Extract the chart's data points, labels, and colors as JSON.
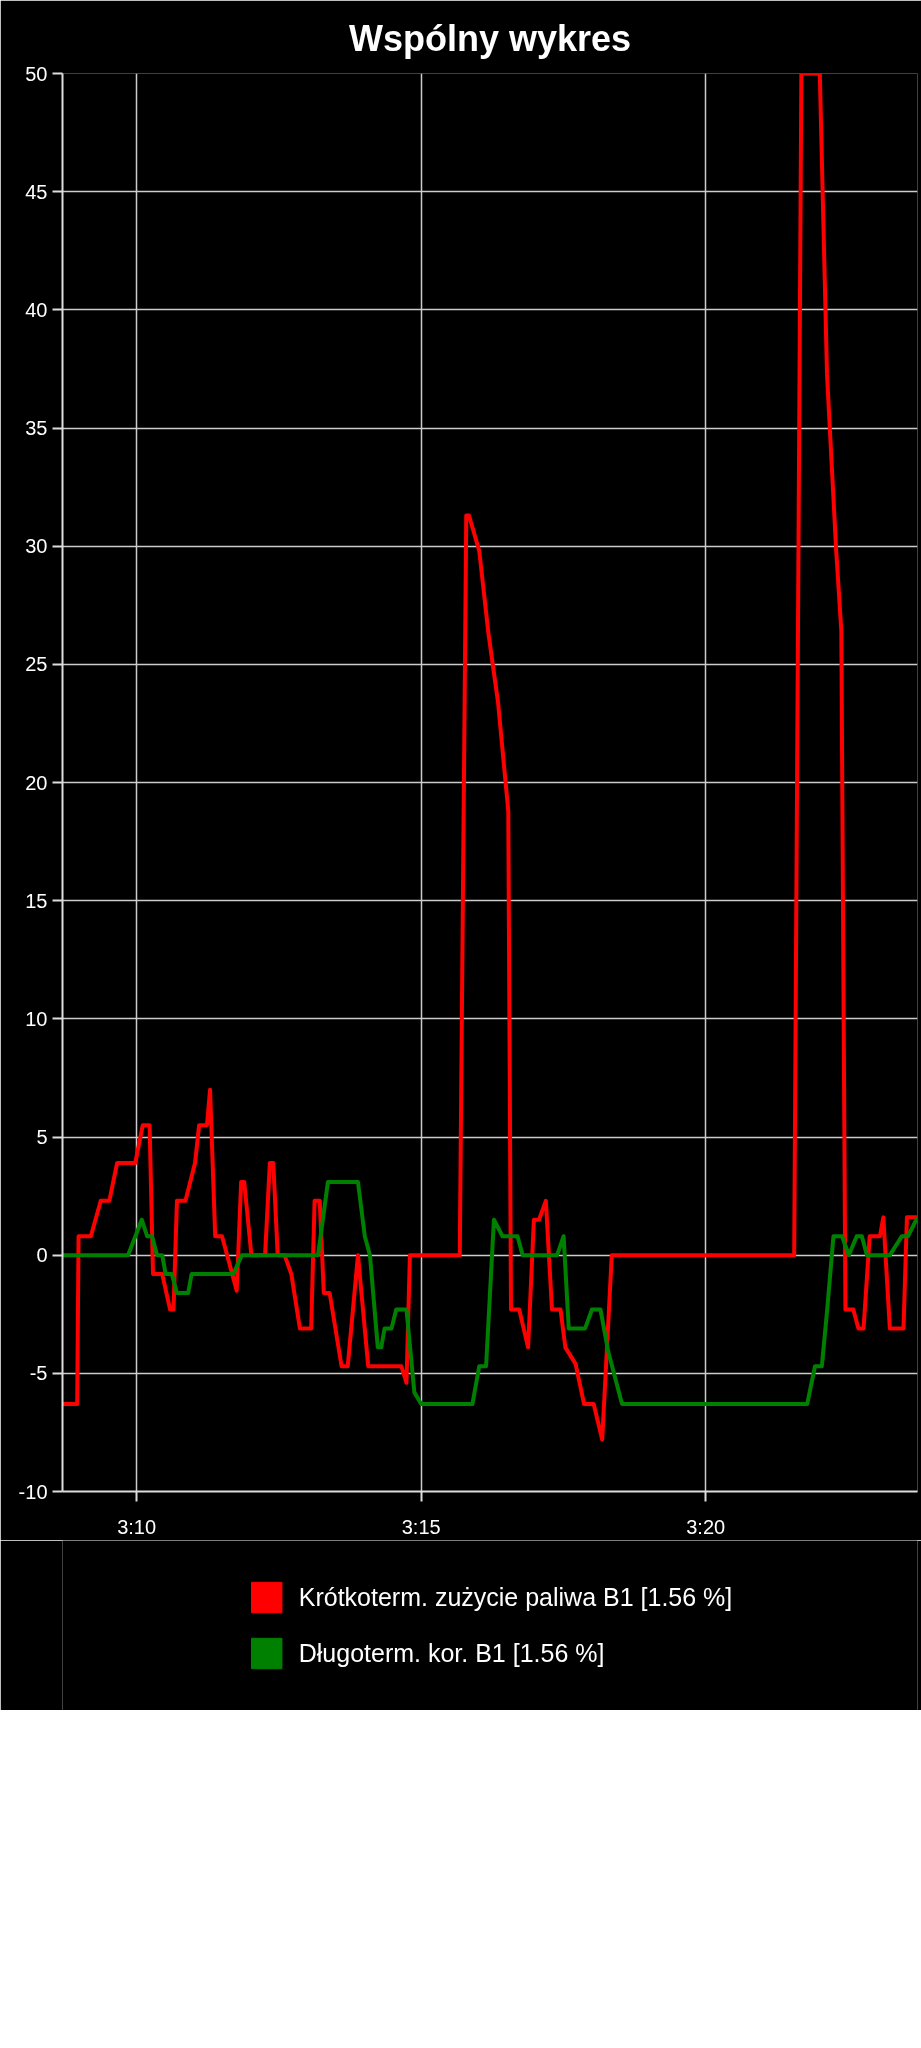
{
  "chart_data": {
    "type": "line",
    "title": "Wspólny wykres",
    "xlim": [
      3.145,
      3.3953
    ],
    "ylim": [
      -10,
      50
    ],
    "xticks": [
      {
        "value": 3.1667,
        "label": "3:10"
      },
      {
        "value": 3.25,
        "label": "3:15"
      },
      {
        "value": 3.3333,
        "label": "3:20"
      }
    ],
    "yticks": [
      -10,
      -5,
      0,
      5,
      10,
      15,
      20,
      25,
      30,
      35,
      40,
      45,
      50
    ],
    "grid": true,
    "legend": "bottom",
    "line_style": "solid",
    "series": [
      {
        "name": "Krótkoterm. zużycie paliwa B1 [1.56 %]",
        "color": "#ff0000",
        "x": [
          3.145,
          3.1493,
          3.1497,
          3.1533,
          3.1562,
          3.1587,
          3.161,
          3.1663,
          3.1685,
          3.1705,
          3.1715,
          3.1742,
          3.1765,
          3.1775,
          3.1785,
          3.181,
          3.1838,
          3.185,
          3.1873,
          3.1882,
          3.1897,
          3.1917,
          3.196,
          3.1973,
          3.1982,
          3.2003,
          3.2043,
          3.2057,
          3.2067,
          3.208,
          3.21,
          3.212,
          3.2145,
          3.2178,
          3.2188,
          3.2203,
          3.2215,
          3.2232,
          3.2267,
          3.2285,
          3.2315,
          3.2345,
          3.2442,
          3.2457,
          3.2467,
          3.2613,
          3.2632,
          3.264,
          3.267,
          3.2697,
          3.2725,
          3.2755,
          3.2763,
          3.2787,
          3.2813,
          3.283,
          3.2845,
          3.2865,
          3.2883,
          3.2908,
          3.2922,
          3.2952,
          3.2977,
          3.3005,
          3.303,
          3.3058,
          3.3592,
          3.3613,
          3.3667,
          3.3688,
          3.3715,
          3.373,
          3.3742,
          3.3765,
          3.378,
          3.3795,
          3.3813,
          3.3843,
          3.3853,
          3.3872,
          3.3912,
          3.3922,
          3.3953
        ],
        "values": [
          -6.3,
          -6.3,
          0.8,
          0.8,
          2.3,
          2.3,
          3.9,
          3.9,
          5.5,
          5.5,
          -0.8,
          -0.8,
          -2.3,
          -2.3,
          2.3,
          2.3,
          3.9,
          5.5,
          5.5,
          7.0,
          0.8,
          0.8,
          -1.5,
          3.1,
          3.1,
          0,
          0,
          3.9,
          3.9,
          0,
          0,
          -0.8,
          -3.1,
          -3.1,
          2.3,
          2.3,
          -1.6,
          -1.6,
          -4.7,
          -4.7,
          0,
          -4.7,
          -4.7,
          -5.4,
          0,
          0,
          31.3,
          31.3,
          29.8,
          26.3,
          23.4,
          18.8,
          -2.3,
          -2.3,
          -3.9,
          1.5,
          1.5,
          2.3,
          -2.3,
          -2.3,
          -3.9,
          -4.6,
          -6.3,
          -6.3,
          -7.8,
          0,
          0,
          50,
          50,
          37.3,
          29.8,
          26.4,
          -2.3,
          -2.3,
          -3.1,
          -3.1,
          0.8,
          0.8,
          1.6,
          -3.1,
          -3.1,
          1.6,
          1.6
        ]
      },
      {
        "name": "Długoterm. kor. B1 [1.56 %]",
        "color": "#008000",
        "x": [
          3.145,
          3.1642,
          3.1682,
          3.1698,
          3.1712,
          3.1727,
          3.1742,
          3.1752,
          3.177,
          3.1785,
          3.1818,
          3.1828,
          3.195,
          3.1975,
          3.2198,
          3.2227,
          3.2315,
          3.2335,
          3.235,
          3.2373,
          3.2383,
          3.2393,
          3.2413,
          3.2427,
          3.2457,
          3.248,
          3.25,
          3.265,
          3.267,
          3.269,
          3.2713,
          3.2738,
          3.2782,
          3.2797,
          3.2898,
          3.2917,
          3.2932,
          3.298,
          3.3,
          3.3025,
          3.3048,
          3.3088,
          3.363,
          3.3653,
          3.3673,
          3.3688,
          3.3707,
          3.3732,
          3.3752,
          3.3775,
          3.379,
          3.3805,
          3.3872,
          3.3907,
          3.3925,
          3.3953
        ],
        "values": [
          0,
          0,
          1.5,
          0.8,
          0.8,
          0,
          0,
          -0.8,
          -0.8,
          -1.6,
          -1.6,
          -0.8,
          -0.8,
          0,
          0,
          3.1,
          3.1,
          0.8,
          0,
          -3.9,
          -3.9,
          -3.1,
          -3.1,
          -2.3,
          -2.3,
          -5.8,
          -6.3,
          -6.3,
          -4.7,
          -4.7,
          1.5,
          0.8,
          0.8,
          0,
          0,
          0.8,
          -3.1,
          -3.1,
          -2.3,
          -2.3,
          -4.1,
          -6.3,
          -6.3,
          -4.7,
          -4.7,
          -2.4,
          0.8,
          0.8,
          0,
          0.8,
          0.8,
          0,
          0,
          0.8,
          0.8,
          1.6
        ]
      }
    ]
  }
}
